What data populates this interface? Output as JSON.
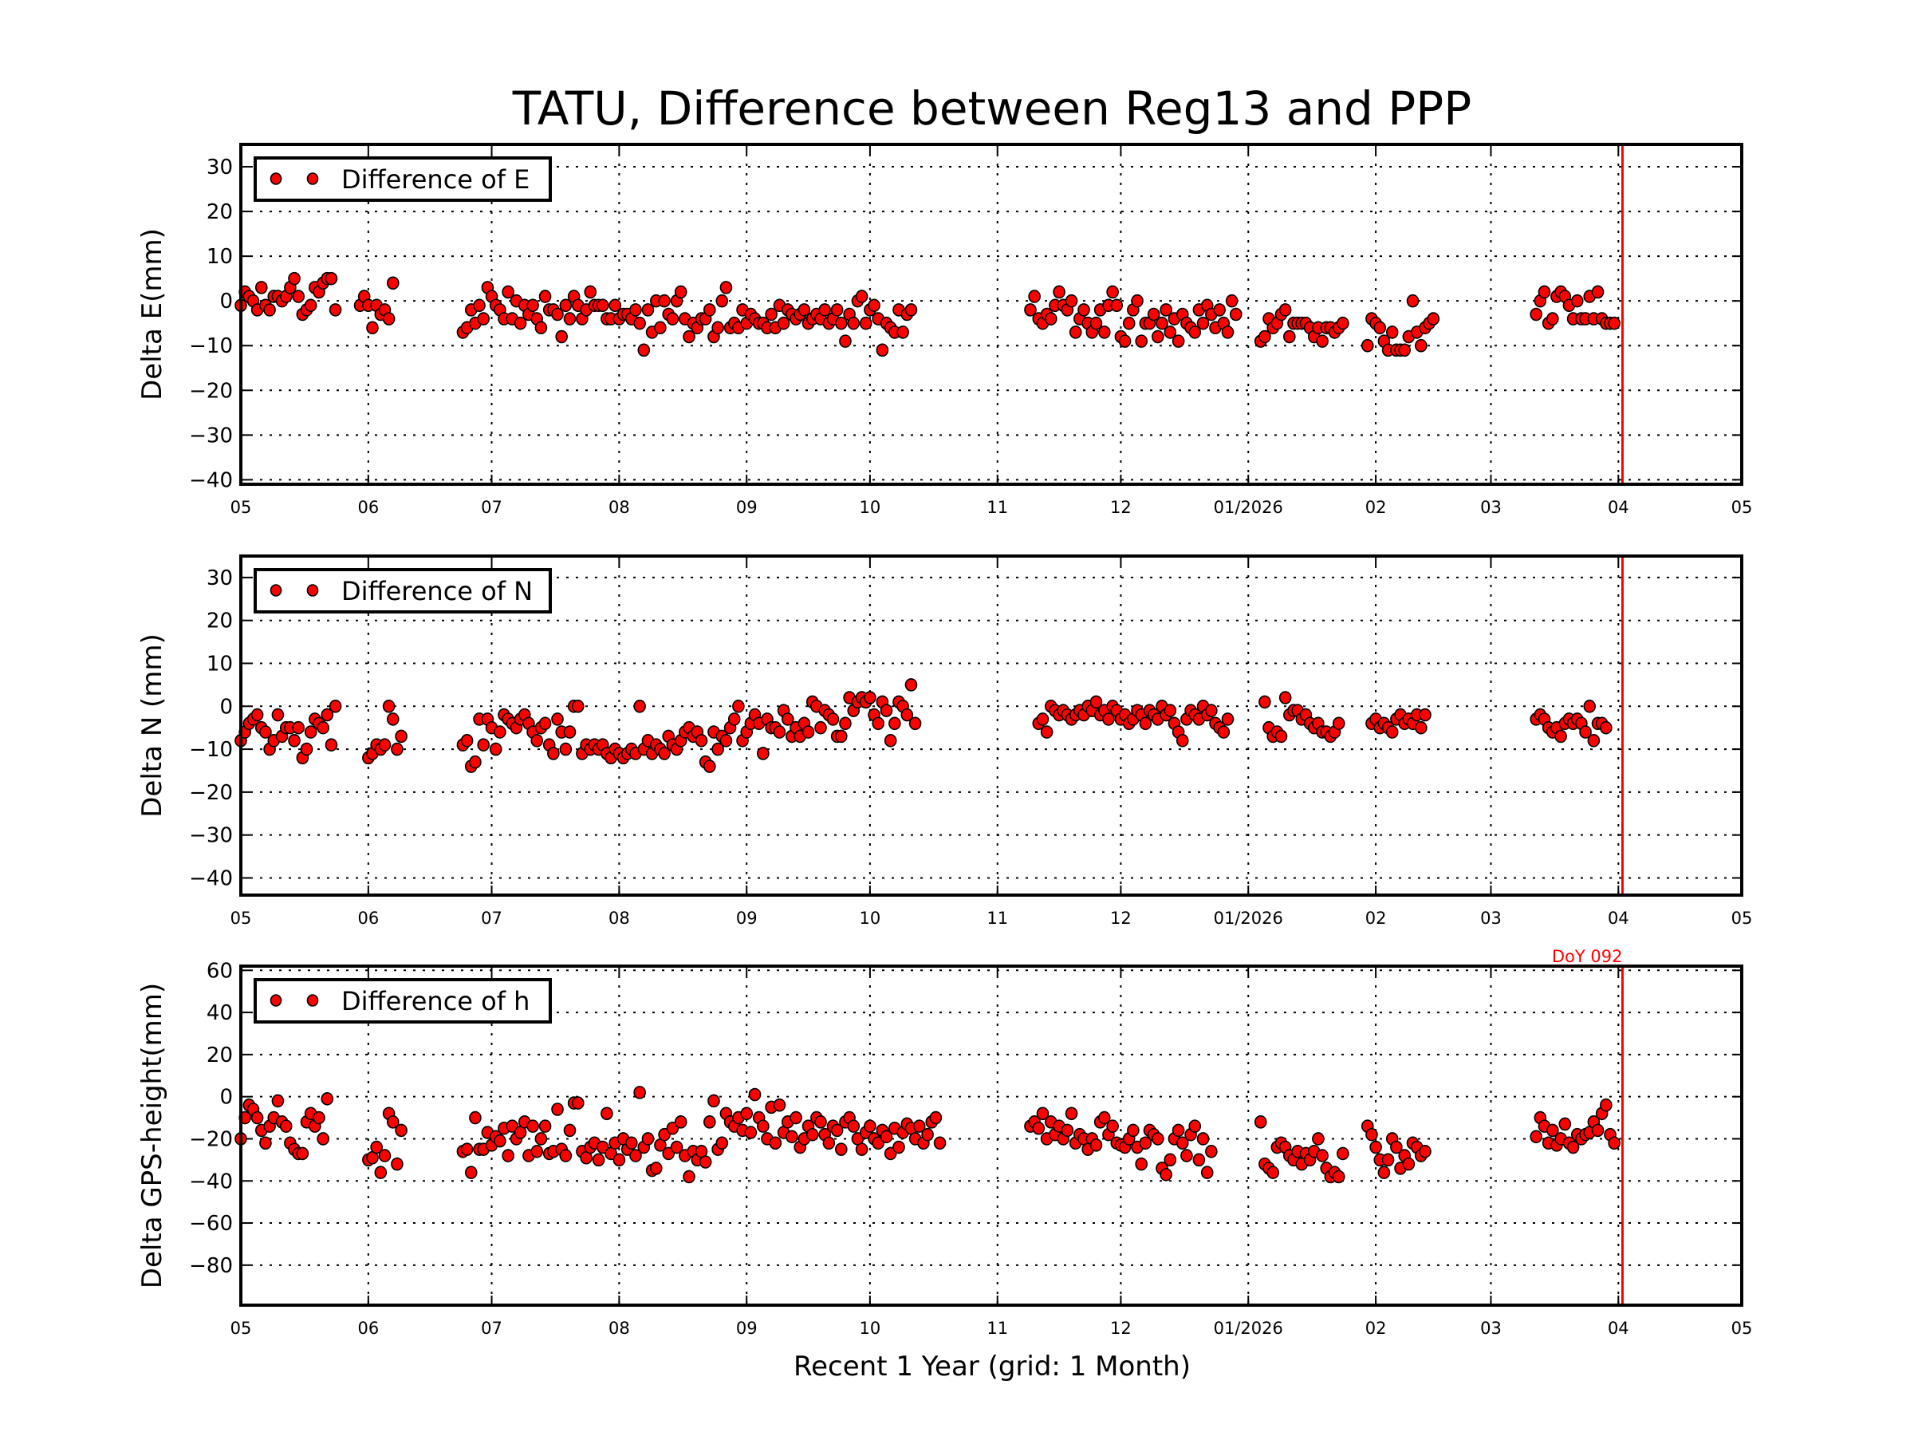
{
  "title": "TATU, Difference between Reg13 and PPP",
  "xlabel": "Recent 1 Year (grid: 1 Month)",
  "marker_color": "#ff0000",
  "marker_edge_color": "#000000",
  "reference_line": {
    "date": "2026-04-02",
    "label": "DoY 092",
    "color": "#ff0000"
  },
  "x_axis": {
    "range": [
      "2025-05-01",
      "2026-05-01"
    ],
    "ticks": [
      {
        "date": "2025-05-01",
        "label": "05"
      },
      {
        "date": "2025-06-01",
        "label": "06"
      },
      {
        "date": "2025-07-01",
        "label": "07"
      },
      {
        "date": "2025-08-01",
        "label": "08"
      },
      {
        "date": "2025-09-01",
        "label": "09"
      },
      {
        "date": "2025-10-01",
        "label": "10"
      },
      {
        "date": "2025-11-01",
        "label": "11"
      },
      {
        "date": "2025-12-01",
        "label": "12"
      },
      {
        "date": "2026-01-01",
        "label": "01/2026"
      },
      {
        "date": "2026-02-01",
        "label": "02"
      },
      {
        "date": "2026-03-01",
        "label": "03"
      },
      {
        "date": "2026-04-01",
        "label": "04"
      },
      {
        "date": "2026-05-01",
        "label": "05"
      }
    ]
  },
  "chart_data": [
    {
      "type": "scatter",
      "ylabel": "Delta E(mm)",
      "legend": "Difference of E",
      "legend_position": "top-left",
      "grid": true,
      "ylim": [
        -41,
        35
      ],
      "yticks": [
        30,
        20,
        10,
        0,
        -10,
        -20,
        -30,
        -40
      ],
      "ytick_labels": [
        "30",
        "20",
        "10",
        "0",
        "−10",
        "−20",
        "−30",
        "−40"
      ],
      "segments": [
        {
          "start": "2025-05-01",
          "values": [
            -1,
            2,
            1,
            0,
            -2,
            3,
            -1,
            -2,
            1,
            1,
            0,
            1,
            3,
            5,
            1,
            -3,
            -2,
            -1,
            3,
            2,
            4,
            5,
            5,
            -2
          ]
        },
        {
          "start": "2025-05-30",
          "values": [
            -1,
            1,
            -1,
            -6,
            -1,
            -3,
            -2,
            -4,
            4
          ]
        },
        {
          "start": "2025-06-24",
          "values": [
            -7,
            -6,
            -2,
            -5,
            -1,
            -4,
            3,
            1,
            -1,
            -2,
            -4,
            2,
            -4,
            0,
            -5,
            -1,
            -3,
            -1,
            -4,
            -6,
            1,
            -2,
            -2,
            -3,
            -8,
            -1,
            -4,
            1,
            -1,
            -4,
            -2,
            2,
            -1,
            -1,
            -1,
            -4,
            -4,
            -1,
            -4,
            -3,
            -3,
            -4,
            -2,
            -5,
            -11,
            -2,
            -7,
            0,
            -6,
            0,
            -3,
            -4,
            0,
            2,
            -4,
            -8,
            -5,
            -6,
            -4,
            -4,
            -2,
            -8,
            -6,
            0,
            3,
            -6,
            -5,
            -6,
            -2,
            -5,
            -3,
            -4,
            -5,
            -5,
            -6,
            -3,
            -6,
            -1,
            -5,
            -2,
            -3,
            -4,
            -3,
            -2,
            -5,
            -4,
            -3,
            -4,
            -2,
            -5,
            -4,
            -2,
            -5,
            -9,
            -3,
            -5,
            0,
            1,
            -5,
            -2,
            -1,
            -4,
            -11,
            -5,
            -6,
            -7,
            -2,
            -7,
            -3,
            -2
          ]
        },
        {
          "start": "2025-11-09",
          "values": [
            -2,
            1,
            -4,
            -5,
            -3,
            -4,
            -1,
            2,
            -1,
            -2,
            0,
            -7,
            -4,
            -2,
            -5,
            -7,
            -5,
            -2,
            -7,
            -1,
            2,
            -1,
            -8,
            -9,
            -5,
            -2,
            0,
            -9,
            -5,
            -5,
            -3,
            -8,
            -5,
            -2,
            -7,
            -4,
            -9,
            -3,
            -5,
            -6,
            -7,
            -2,
            -5,
            -1,
            -3,
            -6,
            -2,
            -5,
            -7,
            0,
            -3
          ]
        },
        {
          "start": "2026-01-04",
          "values": [
            -9,
            -8,
            -4,
            -6,
            -5,
            -3,
            -2,
            -8,
            -5,
            -5,
            -5,
            -5,
            -6,
            -8,
            -6,
            -9,
            -6,
            -6,
            -7,
            -6,
            -5
          ]
        },
        {
          "start": "2026-01-30",
          "values": [
            -10,
            -4,
            -5,
            -6,
            -9,
            -11,
            -7,
            -11,
            -11,
            -11,
            -8,
            0,
            -7,
            -10,
            -6,
            -5,
            -4
          ]
        },
        {
          "start": "2026-03-12",
          "values": [
            -3,
            0,
            2,
            -5,
            -4,
            1,
            2,
            1,
            -1,
            -4,
            0,
            -4,
            -4,
            1,
            -4,
            2,
            -4,
            -5,
            -5,
            -5
          ]
        }
      ]
    },
    {
      "type": "scatter",
      "ylabel": "Delta N (mm)",
      "legend": "Difference of N",
      "legend_position": "top-left",
      "grid": true,
      "ylim": [
        -44,
        35
      ],
      "yticks": [
        30,
        20,
        10,
        0,
        -10,
        -20,
        -30,
        -40
      ],
      "ytick_labels": [
        "30",
        "20",
        "10",
        "0",
        "−10",
        "−20",
        "−30",
        "−40"
      ],
      "segments": [
        {
          "start": "2025-05-01",
          "values": [
            -8,
            -6,
            -4,
            -3,
            -2,
            -5,
            -6,
            -10,
            -8,
            -2,
            -7,
            -5,
            -5,
            -8,
            -5,
            -12,
            -10,
            -6,
            -3,
            -4,
            -5,
            -2,
            -9,
            0
          ]
        },
        {
          "start": "2025-06-01",
          "values": [
            -12,
            -11,
            -9,
            -10,
            -9,
            0,
            -3,
            -10,
            -7
          ]
        },
        {
          "start": "2025-06-24",
          "values": [
            -9,
            -8,
            -14,
            -13,
            -3,
            -9,
            -3,
            -5,
            -10,
            -6,
            -2,
            -3,
            -4,
            -5,
            -3,
            -2,
            -4,
            -6,
            -8,
            -5,
            -4,
            -9,
            -11,
            -3,
            -6,
            -10,
            -6,
            0,
            0,
            -11,
            -9,
            -10,
            -9,
            -10,
            -9,
            -11,
            -12,
            -10,
            -11,
            -12,
            -11,
            -10,
            -11,
            0,
            -10,
            -8,
            -11,
            -9,
            -10,
            -11,
            -7,
            -9,
            -10,
            -8,
            -6,
            -5,
            -7,
            -6,
            -8,
            -13,
            -14,
            -6,
            -10,
            -7,
            -8,
            -5,
            -3,
            0,
            -8,
            -6,
            -4,
            -2,
            -4,
            -11,
            -3,
            -5,
            -5,
            -6,
            -1,
            -3,
            -7,
            -5,
            -7,
            -4,
            -6,
            1,
            0,
            -5,
            -1,
            -2,
            -3,
            -7,
            -7,
            -4,
            2,
            -1,
            1,
            2,
            1,
            2,
            -2,
            -4,
            1,
            -1,
            -8,
            -4,
            1,
            0,
            -2,
            5,
            -4
          ]
        },
        {
          "start": "2025-11-11",
          "values": [
            -4,
            -3,
            -6,
            0,
            -1,
            -2,
            -1,
            -2,
            -3,
            -2,
            -1,
            -2,
            0,
            -1,
            1,
            -2,
            -1,
            -3,
            0,
            -1,
            -3,
            -2,
            -4,
            -3,
            -1,
            -2,
            -4,
            -1,
            -2,
            -3,
            0,
            -2,
            -1,
            -4,
            -6,
            -8,
            -3,
            -1,
            -2,
            -3,
            0,
            -2,
            -1,
            -4,
            -5,
            -6,
            -3
          ]
        },
        {
          "start": "2026-01-05",
          "values": [
            1,
            -5,
            -7,
            -6,
            -7,
            2,
            -2,
            -1,
            -1,
            -3,
            -2,
            -4,
            -5,
            -4,
            -6,
            -6,
            -7,
            -6,
            -4
          ]
        },
        {
          "start": "2026-01-31",
          "values": [
            -4,
            -3,
            -5,
            -4,
            -5,
            -6,
            -3,
            -2,
            -4,
            -3,
            -4,
            -2,
            -5,
            -2
          ]
        },
        {
          "start": "2026-03-12",
          "values": [
            -3,
            -2,
            -3,
            -5,
            -6,
            -5,
            -7,
            -4,
            -3,
            -4,
            -3,
            -4,
            -6,
            0,
            -8,
            -4,
            -4,
            -5
          ]
        }
      ]
    },
    {
      "type": "scatter",
      "ylabel": "Delta GPS-height(mm)",
      "legend": "Difference of h",
      "legend_position": "top-left",
      "grid": true,
      "ylim": [
        -99,
        62
      ],
      "yticks": [
        60,
        40,
        20,
        0,
        -20,
        -40,
        -60,
        -80
      ],
      "ytick_labels": [
        "60",
        "40",
        "20",
        "0",
        "−20",
        "−40",
        "−60",
        "−80"
      ],
      "segments": [
        {
          "start": "2025-05-01",
          "values": [
            -20,
            -10,
            -4,
            -6,
            -10,
            -16,
            -22,
            -14,
            -10,
            -2,
            -12,
            -14,
            -22,
            -25,
            -27,
            -27,
            -12,
            -8,
            -14,
            -10,
            -20,
            -1
          ]
        },
        {
          "start": "2025-06-01",
          "values": [
            -30,
            -29,
            -24,
            -36,
            -28,
            -8,
            -12,
            -32,
            -16
          ]
        },
        {
          "start": "2025-06-24",
          "values": [
            -26,
            -25,
            -36,
            -10,
            -25,
            -25,
            -17,
            -23,
            -19,
            -21,
            -15,
            -28,
            -14,
            -20,
            -17,
            -12,
            -28,
            -14,
            -26,
            -20,
            -14,
            -27,
            -26,
            -6,
            -25,
            -28,
            -16,
            -3,
            -3,
            -26,
            -29,
            -24,
            -22,
            -30,
            -24,
            -8,
            -27,
            -22,
            -30,
            -20,
            -25,
            -22,
            -28,
            2,
            -24,
            -20,
            -35,
            -34,
            -23,
            -18,
            -27,
            -15,
            -24,
            -12,
            -28,
            -38,
            -26,
            -30,
            -26,
            -31,
            -12,
            -2,
            -25,
            -22,
            -8,
            -12,
            -14,
            -10,
            -16,
            -8,
            -17,
            1,
            -10,
            -14,
            -20,
            -5,
            -22,
            -4,
            -17,
            -12,
            -19,
            -10,
            -24,
            -20,
            -14,
            -18,
            -10,
            -12,
            -18,
            -22,
            -14,
            -16,
            -25,
            -12,
            -10,
            -14,
            -20,
            -25,
            -17,
            -14,
            -20,
            -22,
            -16,
            -19,
            -27,
            -15,
            -24,
            -17,
            -13,
            -15,
            -20,
            -14,
            -22,
            -18,
            -12,
            -10,
            -22
          ]
        },
        {
          "start": "2025-11-09",
          "values": [
            -14,
            -12,
            -15,
            -8,
            -20,
            -12,
            -18,
            -14,
            -20,
            -16,
            -8,
            -22,
            -18,
            -20,
            -25,
            -20,
            -23,
            -12,
            -10,
            -18,
            -14,
            -22,
            -23,
            -24,
            -20,
            -16,
            -24,
            -32,
            -22,
            -16,
            -18,
            -20,
            -34,
            -37,
            -30,
            -20,
            -16,
            -22,
            -28,
            -18,
            -14,
            -30,
            -20,
            -36,
            -26
          ]
        },
        {
          "start": "2026-01-04",
          "values": [
            -12,
            -32,
            -34,
            -36,
            -24,
            -22,
            -24,
            -28,
            -30,
            -26,
            -32,
            -27,
            -30,
            -26,
            -20,
            -28,
            -34,
            -38,
            -36,
            -38,
            -27
          ]
        },
        {
          "start": "2026-01-30",
          "values": [
            -14,
            -18,
            -24,
            -30,
            -36,
            -30,
            -20,
            -24,
            -34,
            -28,
            -32,
            -22,
            -24,
            -28,
            -26
          ]
        },
        {
          "start": "2026-03-12",
          "values": [
            -19,
            -10,
            -14,
            -22,
            -16,
            -23,
            -20,
            -13,
            -22,
            -24,
            -18,
            -20,
            -18,
            -17,
            -12,
            -16,
            -8,
            -4,
            -18,
            -22
          ]
        }
      ]
    }
  ]
}
